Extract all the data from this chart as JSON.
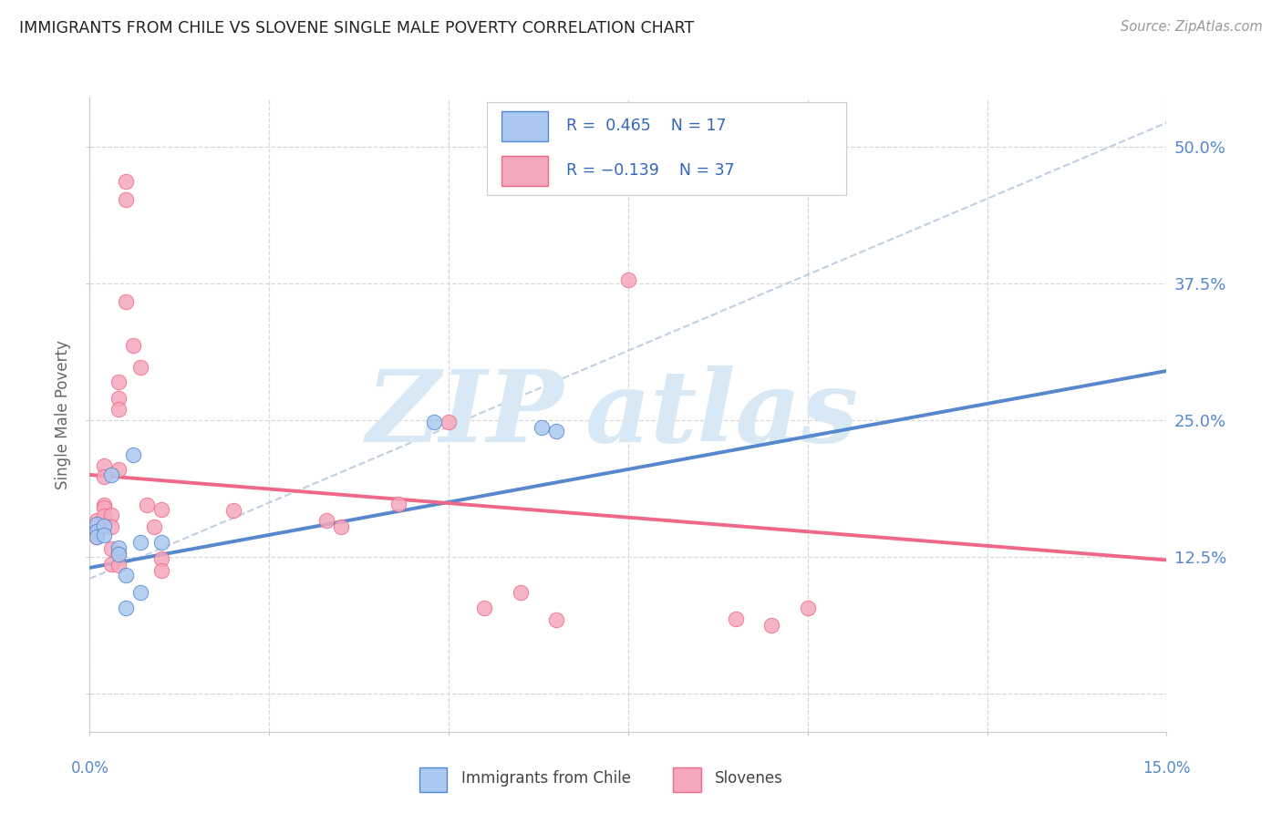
{
  "title": "IMMIGRANTS FROM CHILE VS SLOVENE SINGLE MALE POVERTY CORRELATION CHART",
  "source": "Source: ZipAtlas.com",
  "ylabel": "Single Male Poverty",
  "ytick_labels": [
    "",
    "12.5%",
    "25.0%",
    "37.5%",
    "50.0%"
  ],
  "xmin": 0.0,
  "xmax": 0.15,
  "ymin": -0.035,
  "ymax": 0.545,
  "blue_color": "#aac8f0",
  "pink_color": "#f5a8bc",
  "blue_line_color": "#5588cc",
  "pink_line_color": "#f06888",
  "trend_line_color": "#c0d0e0",
  "blue_scatter": [
    [
      0.001,
      0.155
    ],
    [
      0.001,
      0.148
    ],
    [
      0.001,
      0.143
    ],
    [
      0.002,
      0.153
    ],
    [
      0.002,
      0.145
    ],
    [
      0.003,
      0.2
    ],
    [
      0.004,
      0.133
    ],
    [
      0.004,
      0.127
    ],
    [
      0.005,
      0.108
    ],
    [
      0.005,
      0.078
    ],
    [
      0.006,
      0.218
    ],
    [
      0.007,
      0.138
    ],
    [
      0.007,
      0.092
    ],
    [
      0.01,
      0.138
    ],
    [
      0.048,
      0.248
    ],
    [
      0.063,
      0.243
    ],
    [
      0.065,
      0.24
    ]
  ],
  "pink_scatter": [
    [
      0.001,
      0.153
    ],
    [
      0.001,
      0.148
    ],
    [
      0.001,
      0.158
    ],
    [
      0.001,
      0.143
    ],
    [
      0.002,
      0.172
    ],
    [
      0.002,
      0.208
    ],
    [
      0.002,
      0.198
    ],
    [
      0.002,
      0.17
    ],
    [
      0.002,
      0.162
    ],
    [
      0.003,
      0.163
    ],
    [
      0.003,
      0.152
    ],
    [
      0.003,
      0.132
    ],
    [
      0.003,
      0.118
    ],
    [
      0.004,
      0.285
    ],
    [
      0.004,
      0.27
    ],
    [
      0.004,
      0.26
    ],
    [
      0.004,
      0.205
    ],
    [
      0.004,
      0.128
    ],
    [
      0.004,
      0.117
    ],
    [
      0.005,
      0.468
    ],
    [
      0.005,
      0.452
    ],
    [
      0.005,
      0.358
    ],
    [
      0.006,
      0.318
    ],
    [
      0.007,
      0.298
    ],
    [
      0.008,
      0.172
    ],
    [
      0.009,
      0.152
    ],
    [
      0.01,
      0.168
    ],
    [
      0.01,
      0.123
    ],
    [
      0.01,
      0.112
    ],
    [
      0.02,
      0.167
    ],
    [
      0.033,
      0.158
    ],
    [
      0.035,
      0.152
    ],
    [
      0.043,
      0.173
    ],
    [
      0.05,
      0.248
    ],
    [
      0.055,
      0.078
    ],
    [
      0.06,
      0.092
    ],
    [
      0.065,
      0.067
    ],
    [
      0.075,
      0.378
    ],
    [
      0.09,
      0.068
    ],
    [
      0.095,
      0.062
    ],
    [
      0.1,
      0.078
    ]
  ],
  "blue_trendline_x": [
    0.0,
    0.15
  ],
  "blue_trendline_y": [
    0.115,
    0.295
  ],
  "pink_trendline_x": [
    0.0,
    0.15
  ],
  "pink_trendline_y": [
    0.2,
    0.122
  ],
  "dashed_trendline_x": [
    0.0,
    0.15
  ],
  "dashed_trendline_y": [
    0.105,
    0.522
  ]
}
